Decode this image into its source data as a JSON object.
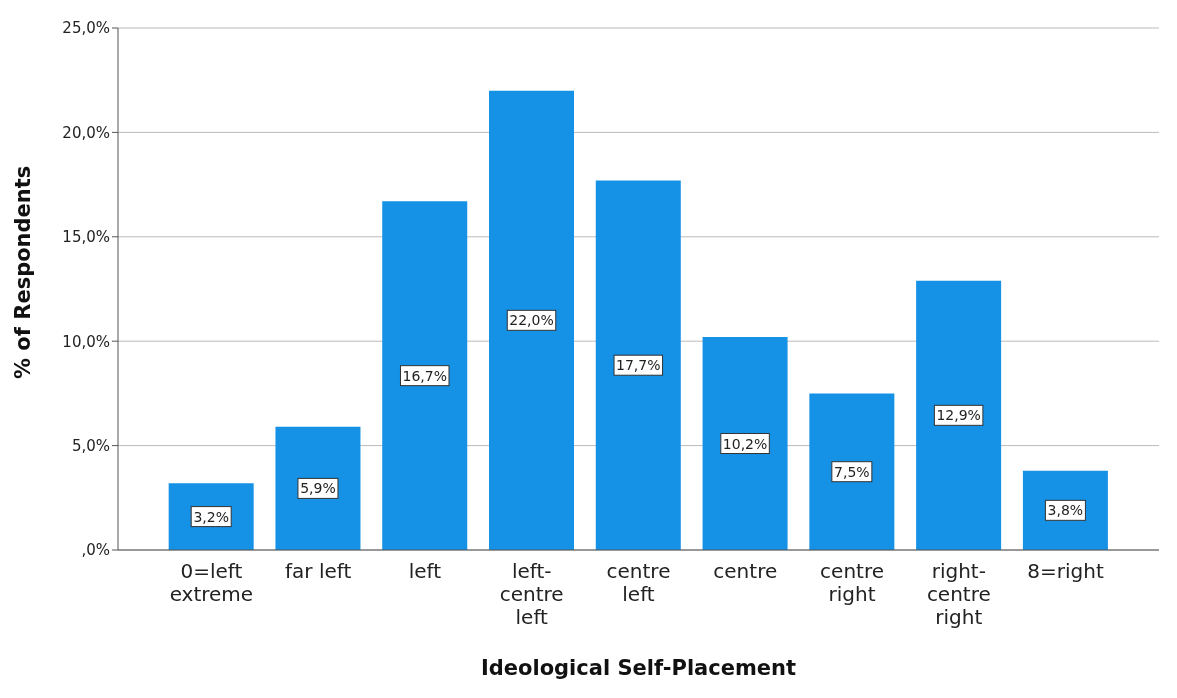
{
  "chart_data": {
    "type": "bar",
    "xlabel": "Ideological Self-Placement",
    "ylabel": "% of Respondents",
    "categories": [
      "0=left extreme",
      "far left",
      "left",
      "left-centre left",
      "centre left",
      "centre",
      "centre right",
      "right-centre right",
      "8=right"
    ],
    "values": [
      3.2,
      5.9,
      16.7,
      22.0,
      17.7,
      10.2,
      7.5,
      12.9,
      3.8
    ],
    "value_labels": [
      "3,2%",
      "5,9%",
      "16,7%",
      "22,0%",
      "17,7%",
      "10,2%",
      "7,5%",
      "12,9%",
      "3,8%"
    ],
    "color": "#1591e6",
    "ylim": [
      0,
      25
    ],
    "yticks": [
      {
        "value": 0,
        "label": ",0%"
      },
      {
        "value": 5,
        "label": "5,0%"
      },
      {
        "value": 10,
        "label": "10,0%"
      },
      {
        "value": 15,
        "label": "15,0%"
      },
      {
        "value": 20,
        "label": "20,0%"
      },
      {
        "value": 25,
        "label": "25,0%"
      }
    ],
    "grid": "y",
    "legend": false
  }
}
